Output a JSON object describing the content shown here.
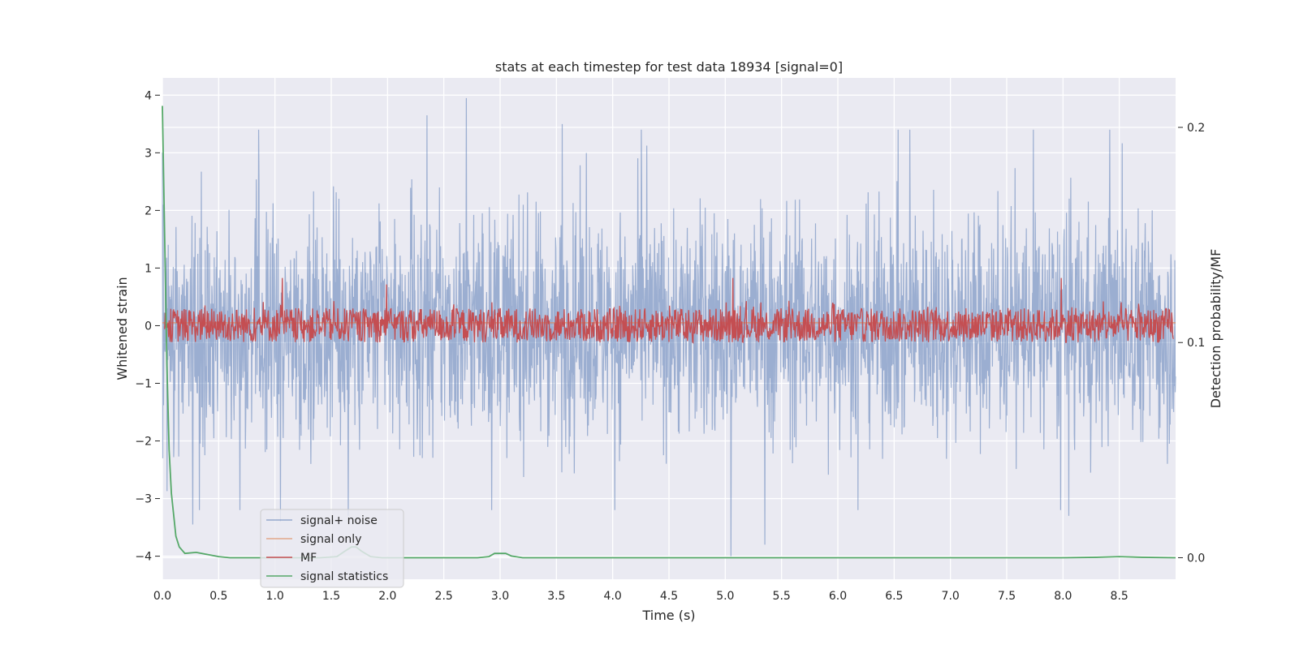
{
  "chart_data": {
    "type": "line",
    "title": "stats at each timestep for test data 18934 [signal=0]",
    "xlabel": "Time (s)",
    "ylabel": "Whitened strain",
    "y2label": "Detection probability/MF",
    "xlim": [
      0.0,
      9.0
    ],
    "ylim": [
      -4.4,
      4.3
    ],
    "y2lim": [
      -0.01,
      0.223
    ],
    "x_ticks": [
      "0.0",
      "0.5",
      "1.0",
      "1.5",
      "2.0",
      "2.5",
      "3.0",
      "3.5",
      "4.0",
      "4.5",
      "5.0",
      "5.5",
      "6.0",
      "6.5",
      "7.0",
      "7.5",
      "8.0",
      "8.5"
    ],
    "y_ticks": [
      "4",
      "3",
      "2",
      "1",
      "0",
      "−1",
      "−2",
      "−3",
      "−4"
    ],
    "y2_ticks": [
      "0.2",
      "0.1",
      "0.0"
    ],
    "grid": true,
    "legend_position": "lower-left",
    "colors": {
      "background": "#eaeaf2",
      "grid": "#ffffff",
      "noise": "#4c72b0",
      "signal_only": "#dd8452",
      "mf": "#c44e52",
      "stat": "#55a868"
    },
    "series": [
      {
        "name": "signal+ noise",
        "axis": "left",
        "style": "random band",
        "description_range": [
          -3.5,
          3.9
        ],
        "peaks": [
          [
            0.27,
            -3.45
          ],
          [
            1.05,
            -3.4
          ],
          [
            1.65,
            -3.3
          ],
          [
            2.35,
            3.65
          ],
          [
            2.7,
            3.95
          ],
          [
            3.55,
            3.5
          ],
          [
            5.05,
            -4.0
          ],
          [
            5.35,
            -3.8
          ],
          [
            8.05,
            -3.3
          ]
        ]
      },
      {
        "name": "signal only",
        "axis": "left",
        "x": [
          0.0,
          9.0
        ],
        "y": [
          0.05,
          0.05
        ]
      },
      {
        "name": "MF",
        "axis": "right",
        "style": "random band",
        "band": [
          0.1,
          0.12
        ],
        "peaks": [
          [
            1.05,
            0.13
          ],
          [
            1.98,
            0.127
          ],
          [
            5.07,
            0.13
          ],
          [
            8.0,
            0.13
          ]
        ]
      },
      {
        "name": "signal statistics",
        "axis": "right",
        "x": [
          0.0,
          0.02,
          0.04,
          0.06,
          0.08,
          0.1,
          0.12,
          0.15,
          0.2,
          0.3,
          0.4,
          0.5,
          0.6,
          0.8,
          1.0,
          1.2,
          1.4,
          1.55,
          1.62,
          1.68,
          1.72,
          1.77,
          1.85,
          1.95,
          2.1,
          2.5,
          2.8,
          2.9,
          2.95,
          3.0,
          3.05,
          3.1,
          3.2,
          3.4,
          4.0,
          5.0,
          6.0,
          7.0,
          8.0,
          8.3,
          8.5,
          8.7,
          9.0
        ],
        "y": [
          0.21,
          0.15,
          0.09,
          0.05,
          0.03,
          0.02,
          0.01,
          0.005,
          0.002,
          0.0025,
          0.0015,
          0.0005,
          0.0,
          0.0,
          0.0,
          0.0,
          0.0,
          0.0005,
          0.003,
          0.005,
          0.005,
          0.003,
          0.0005,
          0.0,
          0.0,
          0.0,
          0.0,
          0.0005,
          0.002,
          0.002,
          0.002,
          0.0008,
          0.0,
          0.0,
          0.0,
          0.0,
          0.0,
          0.0,
          0.0,
          0.0002,
          0.0005,
          0.0002,
          0.0
        ]
      }
    ]
  }
}
